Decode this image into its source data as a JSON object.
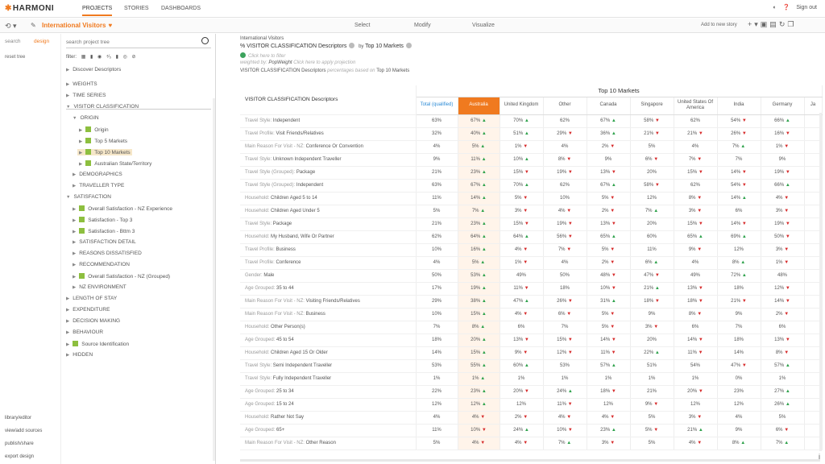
{
  "app": {
    "logo": "HARMONI",
    "nav": [
      "PROJECTS",
      "STORIES",
      "DASHBOARDS"
    ],
    "sign_out": "Sign out"
  },
  "subbar": {
    "project_title": "International Visitors",
    "modes": [
      "Select",
      "Modify",
      "Visualize"
    ],
    "add_to_story": "Add to new story"
  },
  "sidebar": {
    "tabs": [
      "search",
      "design"
    ],
    "reset_tree": "reset tree",
    "search_placeholder": "search project tree",
    "filter_label": "filter:",
    "bottom_links": [
      "library/editor",
      "view/add sources",
      "publish/share",
      "export design"
    ],
    "tree": [
      {
        "label": "Discover Descriptors",
        "type": "arrow"
      },
      {
        "label": "WEIGHTS",
        "type": "arrow"
      },
      {
        "label": "TIME SERIES",
        "type": "arrow"
      },
      {
        "label": "VISITOR CLASSIFICATION",
        "type": "open"
      },
      {
        "label": "ORIGIN",
        "type": "open"
      },
      {
        "label": "Origin",
        "type": "folder"
      },
      {
        "label": "Top 5 Markets",
        "type": "folder"
      },
      {
        "label": "Top 10 Markets",
        "type": "folder"
      },
      {
        "label": "Australian State/Territory",
        "type": "folder"
      },
      {
        "label": "DEMOGRAPHICS",
        "type": "arrow"
      },
      {
        "label": "TRAVELLER TYPE",
        "type": "arrow"
      },
      {
        "label": "SATISFACTION",
        "type": "open"
      },
      {
        "label": "Overall Satisfaction - NZ Experience",
        "type": "folder"
      },
      {
        "label": "Satisfaction - Top 3",
        "type": "folder"
      },
      {
        "label": "Satisfaction - Bttm 3",
        "type": "folder"
      },
      {
        "label": "SATISFACTION DETAIL",
        "type": "arrow"
      },
      {
        "label": "REASONS DISSATISFIED",
        "type": "arrow"
      },
      {
        "label": "RECOMMENDATION",
        "type": "arrow"
      },
      {
        "label": "Overall Satisfaction - NZ (Grouped)",
        "type": "folder"
      },
      {
        "label": "NZ ENVIRONMENT",
        "type": "arrow"
      },
      {
        "label": "LENGTH OF STAY",
        "type": "arrow"
      },
      {
        "label": "EXPENDITURE",
        "type": "arrow"
      },
      {
        "label": "DECISION MAKING",
        "type": "arrow"
      },
      {
        "label": "BEHAVIOUR",
        "type": "arrow"
      },
      {
        "label": "Source Identification",
        "type": "folder"
      },
      {
        "label": "HIDDEN",
        "type": "arrow"
      }
    ]
  },
  "report": {
    "source": "International Visitors",
    "row_var": "% VISITOR CLASSIFICATION Descriptors",
    "by": "by",
    "col_var": "Top 10 Markets",
    "filter_hint": "Click here to filter",
    "weighted_by_prefix": "weighted by: ",
    "weight_name": "PopWeight",
    "projection_hint": "Click here to apply projection",
    "desc_var": "VISITOR CLASSIFICATION Descriptors",
    "desc_mid": " percentages based on ",
    "desc_base": "Top 10 Markets"
  },
  "table": {
    "group_header": "Top 10 Markets",
    "row_header": "VISITOR CLASSIFICATION Descriptors",
    "columns": [
      "Total (qualified)",
      "Australia",
      "United Kingdom",
      "Other",
      "Canada",
      "Singapore",
      "United States Of America",
      "India",
      "Germany",
      "Ja"
    ],
    "rows": [
      {
        "cat": "Travel Style: ",
        "label": "Independent",
        "v": [
          "63%",
          "67% ▲",
          "70% ▲",
          "62%",
          "67% ▲",
          "58% ▼",
          "62%",
          "54% ▼",
          "66% ▲",
          ""
        ]
      },
      {
        "cat": "Travel Profile: ",
        "label": "Visit Friends/Relatives",
        "v": [
          "32%",
          "40% ▲",
          "51% ▲",
          "29% ▼",
          "36% ▲",
          "21% ▼",
          "21% ▼",
          "26% ▼",
          "16% ▼",
          ""
        ]
      },
      {
        "cat": "Main Reason For Visit - NZ: ",
        "label": "Conference Or Convention",
        "v": [
          "4%",
          "5% ▲",
          "1% ▼",
          "4%",
          "2% ▼",
          "5%",
          "4%",
          "7% ▲",
          "1% ▼",
          ""
        ]
      },
      {
        "cat": "Travel Style: ",
        "label": "Unknown Independent Traveller",
        "v": [
          "9%",
          "11% ▲",
          "10% ▲",
          "8% ▼",
          "9%",
          "6% ▼",
          "7% ▼",
          "7%",
          "9%",
          ""
        ]
      },
      {
        "cat": "Travel Style (Grouped): ",
        "label": "Package",
        "v": [
          "21%",
          "23% ▲",
          "15% ▼",
          "19% ▼",
          "13% ▼",
          "20%",
          "15% ▼",
          "14% ▼",
          "19% ▼",
          ""
        ]
      },
      {
        "cat": "Travel Style (Grouped): ",
        "label": "Independent",
        "v": [
          "63%",
          "67% ▲",
          "70% ▲",
          "62%",
          "67% ▲",
          "58% ▼",
          "62%",
          "54% ▼",
          "66% ▲",
          ""
        ]
      },
      {
        "cat": "Household: ",
        "label": "Children Aged 5 to 14",
        "v": [
          "11%",
          "14% ▲",
          "5% ▼",
          "10%",
          "5% ▼",
          "12%",
          "8% ▼",
          "14% ▲",
          "4% ▼",
          ""
        ]
      },
      {
        "cat": "Household: ",
        "label": "Children Aged Under 5",
        "v": [
          "5%",
          "7% ▲",
          "3% ▼",
          "4% ▼",
          "2% ▼",
          "7% ▲",
          "3% ▼",
          "6%",
          "3% ▼",
          ""
        ]
      },
      {
        "cat": "Travel Style: ",
        "label": "Package",
        "v": [
          "21%",
          "23% ▲",
          "15% ▼",
          "19% ▼",
          "13% ▼",
          "20%",
          "15% ▼",
          "14% ▼",
          "19% ▼",
          ""
        ]
      },
      {
        "cat": "Household: ",
        "label": "My Husband, Wife Or Partner",
        "v": [
          "62%",
          "64% ▲",
          "64% ▲",
          "56% ▼",
          "65% ▲",
          "60%",
          "65% ▲",
          "69% ▲",
          "50% ▼",
          ""
        ]
      },
      {
        "cat": "Travel Profile: ",
        "label": "Business",
        "v": [
          "10%",
          "16% ▲",
          "4% ▼",
          "7% ▼",
          "5% ▼",
          "11%",
          "9% ▼",
          "12%",
          "3% ▼",
          ""
        ]
      },
      {
        "cat": "Travel Profile: ",
        "label": "Conference",
        "v": [
          "4%",
          "5% ▲",
          "1% ▼",
          "4%",
          "2% ▼",
          "6% ▲",
          "4%",
          "8% ▲",
          "1% ▼",
          ""
        ]
      },
      {
        "cat": "Gender: ",
        "label": "Male",
        "v": [
          "50%",
          "53% ▲",
          "49%",
          "50%",
          "48% ▼",
          "47% ▼",
          "49%",
          "72% ▲",
          "48%",
          ""
        ]
      },
      {
        "cat": "Age Grouped: ",
        "label": "35 to 44",
        "v": [
          "17%",
          "19% ▲",
          "11% ▼",
          "18%",
          "10% ▼",
          "21% ▲",
          "13% ▼",
          "18%",
          "12% ▼",
          ""
        ]
      },
      {
        "cat": "Main Reason For Visit - NZ: ",
        "label": "Visiting Friends/Relatives",
        "v": [
          "29%",
          "38% ▲",
          "47% ▲",
          "26% ▼",
          "31% ▲",
          "18% ▼",
          "18% ▼",
          "21% ▼",
          "14% ▼",
          ""
        ]
      },
      {
        "cat": "Main Reason For Visit - NZ: ",
        "label": "Business",
        "v": [
          "10%",
          "15% ▲",
          "4% ▼",
          "6% ▼",
          "5% ▼",
          "9%",
          "8% ▼",
          "9%",
          "2% ▼",
          ""
        ]
      },
      {
        "cat": "Household: ",
        "label": "Other Person(s)",
        "v": [
          "7%",
          "8% ▲",
          "6%",
          "7%",
          "5% ▼",
          "3% ▼",
          "6%",
          "7%",
          "6%",
          ""
        ]
      },
      {
        "cat": "Age Grouped: ",
        "label": "45 to 54",
        "v": [
          "18%",
          "20% ▲",
          "13% ▼",
          "15% ▼",
          "14% ▼",
          "20%",
          "14% ▼",
          "18%",
          "13% ▼",
          ""
        ]
      },
      {
        "cat": "Household: ",
        "label": "Children Aged 15 Or Older",
        "v": [
          "14%",
          "15% ▲",
          "9% ▼",
          "12% ▼",
          "11% ▼",
          "22% ▲",
          "11% ▼",
          "14%",
          "8% ▼",
          ""
        ]
      },
      {
        "cat": "Travel Style: ",
        "label": "Semi Independent Traveller",
        "v": [
          "53%",
          "55% ▲",
          "60% ▲",
          "53%",
          "57% ▲",
          "51%",
          "54%",
          "47% ▼",
          "57% ▲",
          ""
        ]
      },
      {
        "cat": "Travel Style: ",
        "label": "Fully Independent Traveller",
        "v": [
          "1%",
          "1% ▲",
          "1%",
          "1%",
          "1%",
          "1%",
          "1%",
          "0%",
          "1%",
          ""
        ]
      },
      {
        "cat": "Age Grouped: ",
        "label": "25 to 34",
        "v": [
          "22%",
          "23% ▲",
          "20% ▼",
          "24% ▲",
          "18% ▼",
          "21%",
          "20% ▼",
          "23%",
          "27% ▲",
          ""
        ]
      },
      {
        "cat": "Age Grouped: ",
        "label": "15 to 24",
        "v": [
          "12%",
          "12% ▲",
          "12%",
          "11% ▼",
          "12%",
          "9% ▼",
          "12%",
          "12%",
          "26% ▲",
          ""
        ]
      },
      {
        "cat": "Household: ",
        "label": "Rather Not Say",
        "v": [
          "4%",
          "4% ▼",
          "2% ▼",
          "4% ▼",
          "4% ▼",
          "5%",
          "3% ▼",
          "4%",
          "5%",
          ""
        ]
      },
      {
        "cat": "Age Grouped: ",
        "label": "65+",
        "v": [
          "11%",
          "10% ▼",
          "24% ▲",
          "10% ▼",
          "23% ▲",
          "5% ▼",
          "21% ▲",
          "9%",
          "6% ▼",
          ""
        ]
      },
      {
        "cat": "Main Reason For Visit - NZ: ",
        "label": "Other Reason",
        "v": [
          "5%",
          "4% ▼",
          "4% ▼",
          "7% ▲",
          "3% ▼",
          "5%",
          "4% ▼",
          "8% ▲",
          "7% ▲",
          ""
        ]
      }
    ]
  }
}
